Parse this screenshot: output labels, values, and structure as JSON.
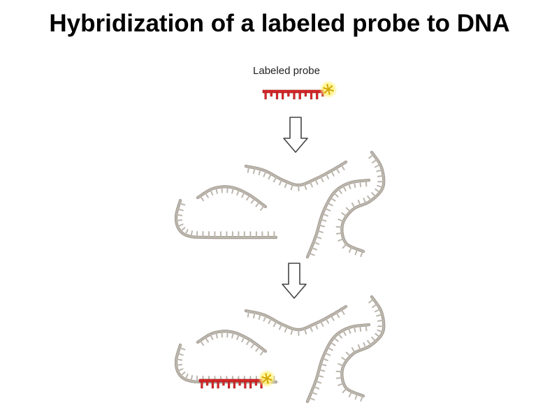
{
  "title": "Hybridization of a labeled probe to DNA",
  "probe_label": "Labeled probe",
  "colors": {
    "dna": "#bcb6ad",
    "dna_shade": "#9a948b",
    "probe": "#d8282a",
    "probe_dark": "#8e1212",
    "label_glow": "#fff27a",
    "label_star": "#d4a600",
    "arrow": "#444444"
  },
  "icons": [
    "down-arrow-icon",
    "label-star-icon"
  ]
}
